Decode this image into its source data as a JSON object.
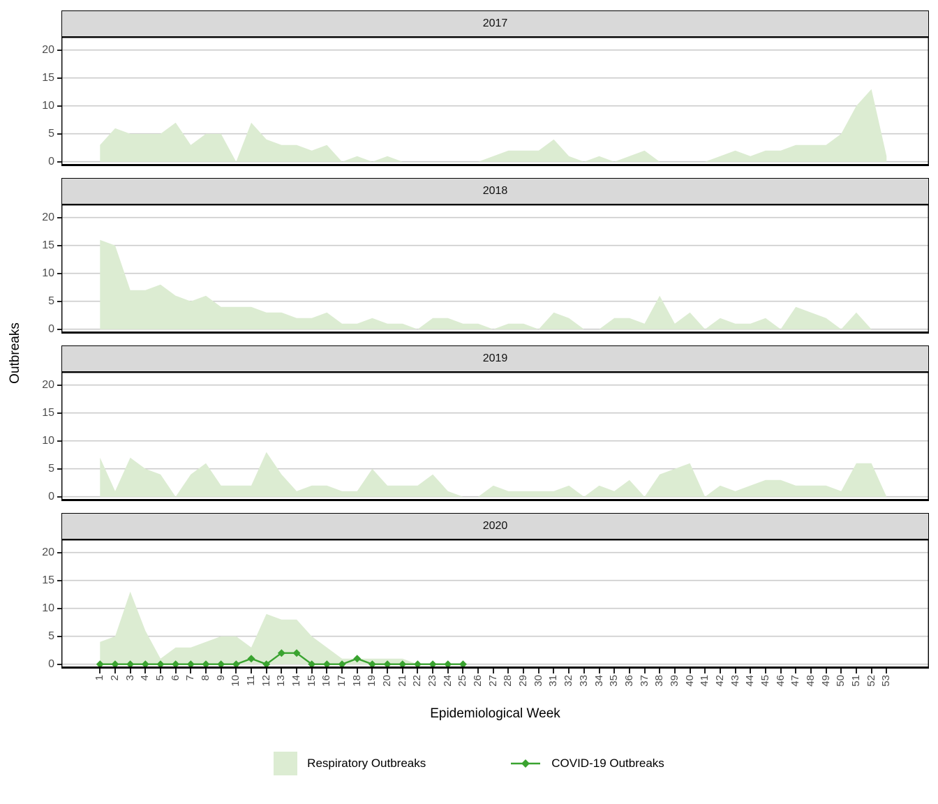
{
  "chart_data": {
    "type": "area",
    "title": "",
    "xlabel": "Epidemiological Week",
    "ylabel": "Outbreaks",
    "x_ticks": [
      1,
      2,
      3,
      4,
      5,
      6,
      7,
      8,
      9,
      10,
      11,
      12,
      13,
      14,
      15,
      16,
      17,
      18,
      19,
      20,
      21,
      22,
      23,
      24,
      25,
      26,
      27,
      28,
      29,
      30,
      31,
      32,
      33,
      34,
      35,
      36,
      37,
      38,
      39,
      40,
      41,
      42,
      43,
      44,
      45,
      46,
      47,
      48,
      49,
      50,
      51,
      52,
      53
    ],
    "y_ticks": [
      0,
      5,
      10,
      15,
      20
    ],
    "ylim": [
      0,
      22
    ],
    "grid": "horizontal-only",
    "legend_position": "bottom",
    "facets": [
      {
        "year": "2017",
        "respiratory": [
          3,
          6,
          5,
          5,
          5,
          7,
          3,
          5,
          5,
          0,
          7,
          4,
          3,
          3,
          2,
          3,
          0,
          1,
          0,
          1,
          0,
          0,
          0,
          0,
          0,
          0,
          1,
          2,
          2,
          2,
          4,
          1,
          0,
          1,
          0,
          1,
          2,
          0,
          0,
          0,
          0,
          1,
          2,
          1,
          2,
          2,
          3,
          3,
          3,
          5,
          10,
          13,
          1
        ]
      },
      {
        "year": "2018",
        "respiratory": [
          16,
          15,
          7,
          7,
          8,
          6,
          5,
          6,
          4,
          4,
          4,
          3,
          3,
          2,
          2,
          3,
          1,
          1,
          2,
          1,
          1,
          0,
          2,
          2,
          1,
          1,
          0,
          1,
          1,
          0,
          3,
          2,
          0,
          0,
          2,
          2,
          1,
          6,
          1,
          3,
          0,
          2,
          1,
          1,
          2,
          0,
          4,
          3,
          2,
          0,
          3,
          0,
          0
        ]
      },
      {
        "year": "2019",
        "respiratory": [
          7,
          1,
          7,
          5,
          4,
          0,
          4,
          6,
          2,
          2,
          2,
          8,
          4,
          1,
          2,
          2,
          1,
          1,
          5,
          2,
          2,
          2,
          4,
          1,
          0,
          0,
          2,
          1,
          1,
          1,
          1,
          2,
          0,
          2,
          1,
          3,
          0,
          4,
          5,
          6,
          0,
          2,
          1,
          2,
          3,
          3,
          2,
          2,
          2,
          1,
          6,
          6,
          0
        ]
      },
      {
        "year": "2020",
        "respiratory": [
          4,
          5,
          13,
          6,
          1,
          3,
          3,
          4,
          5,
          5,
          3,
          9,
          8,
          8,
          5,
          3,
          1,
          1,
          1,
          1,
          1,
          0,
          0,
          0,
          0
        ],
        "covid": [
          0,
          0,
          0,
          0,
          0,
          0,
          0,
          0,
          0,
          0,
          1,
          0,
          2,
          2,
          0,
          0,
          0,
          1,
          0,
          0,
          0,
          0,
          0,
          0,
          0
        ]
      }
    ],
    "legend": [
      {
        "label": "Respiratory Outbreaks",
        "type": "area",
        "color": "#dcecd2"
      },
      {
        "label": "COVID-19 Outbreaks",
        "type": "line-point",
        "color": "#3aa330"
      }
    ],
    "colors": {
      "area_fill": "#dcecd2",
      "covid_line": "#3aa330",
      "gridline": "#cccccc",
      "strip_bg": "#d9d9d9",
      "axis_text": "#4d4d4d",
      "panel_border": "#000000"
    }
  }
}
